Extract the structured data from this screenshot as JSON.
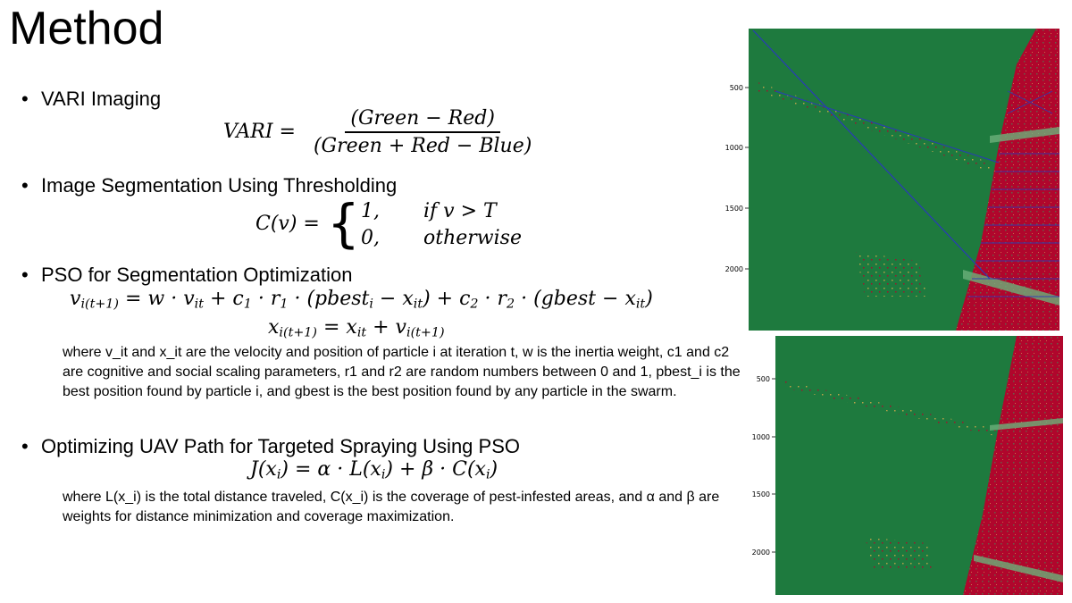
{
  "title": "Method",
  "bullets": [
    "VARI Imaging",
    "Image Segmentation Using Thresholding",
    "PSO for Segmentation Optimization",
    "Optimizing UAV Path for Targeted Spraying Using PSO"
  ],
  "vari": {
    "lhs": "VARI",
    "numerator": "(Green − Red)",
    "denominator": "(Green + Red − Blue)"
  },
  "threshold": {
    "lhs": "C(v) =",
    "case1_val": "1,",
    "case1_cond": "if v > T",
    "case2_val": "0,",
    "case2_cond": "otherwise"
  },
  "pso_note": "where v_it and x_it are the velocity and position of particle i at iteration t, w is the inertia weight, c1 and c2 are cognitive and social scaling parameters, r1 and r2 are random numbers between 0 and 1, pbest_i is the best position found by particle i, and gbest is the best position found by any particle in the swarm.",
  "uav_note": "where L(x_i) is the total distance traveled, C(x_i) is the coverage of pest-infested areas, and α and β are weights for distance minimization and coverage maximization.",
  "images": {
    "top": {
      "ticks": [
        "500",
        "1000",
        "1500",
        "2000"
      ],
      "colors": {
        "healthy": "#1e7a3e",
        "infested": "#b0062c",
        "path": "#2a3ab8"
      }
    },
    "bottom": {
      "ticks": [
        "500",
        "1000",
        "1500",
        "2000"
      ],
      "colors": {
        "healthy": "#1e7a3e",
        "infested": "#b0062c"
      }
    }
  }
}
